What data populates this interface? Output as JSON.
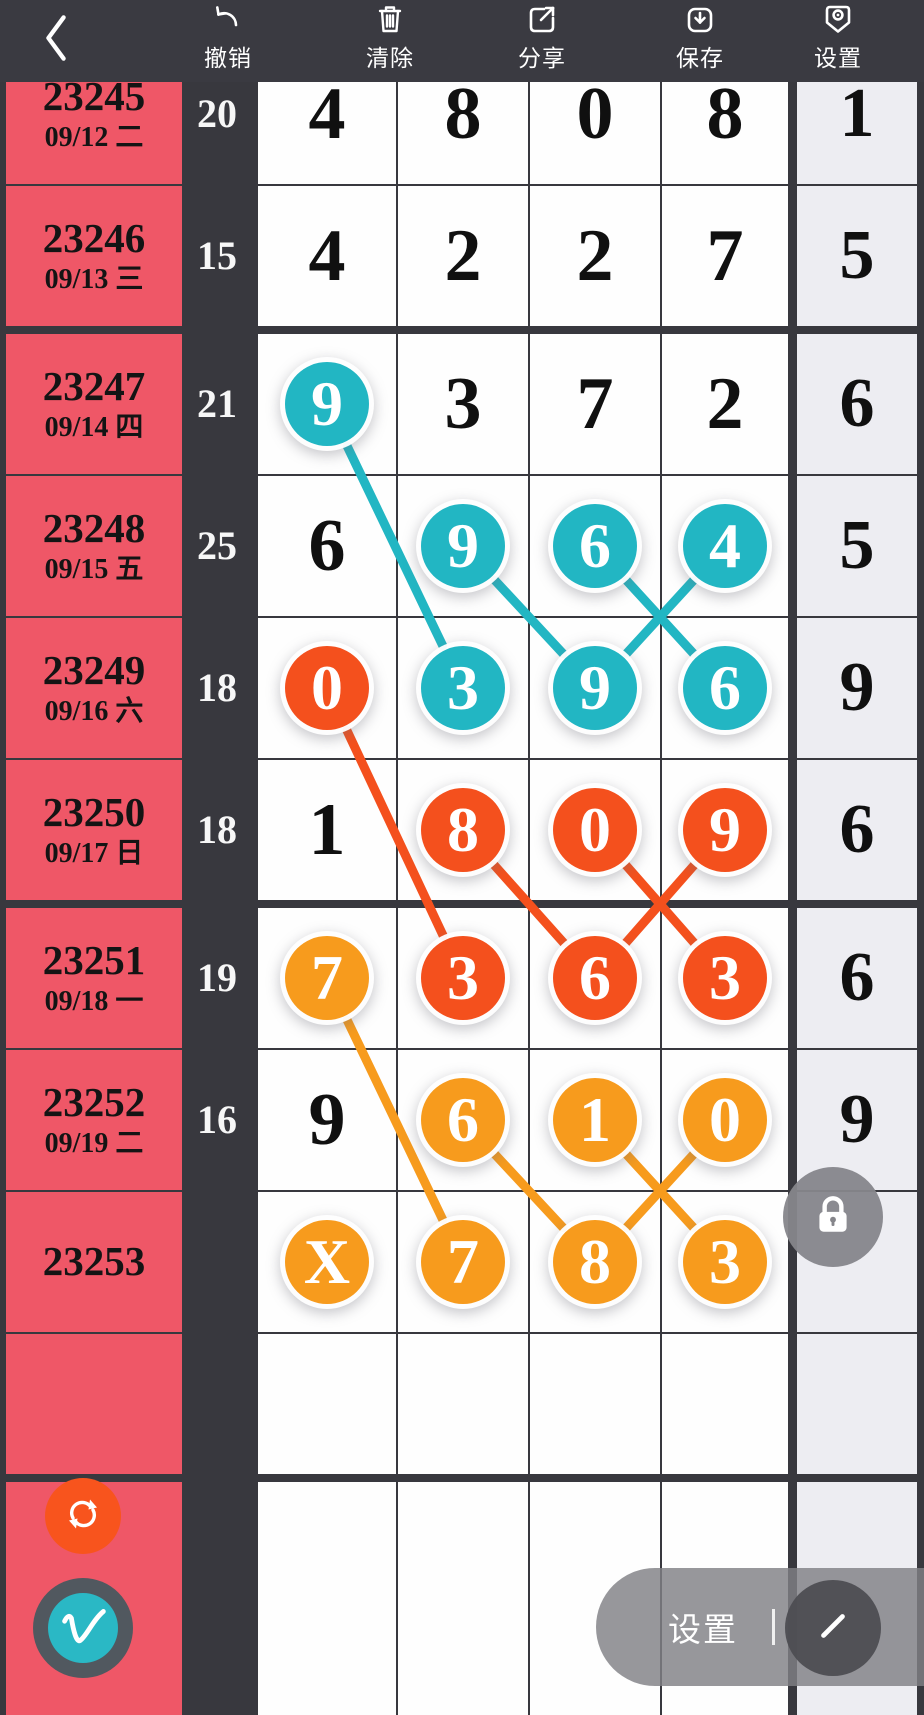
{
  "toolbar": {
    "back_icon": "chevron-left",
    "items": [
      {
        "id": "undo",
        "icon": "undo-icon",
        "label": "撤销"
      },
      {
        "id": "clear",
        "icon": "trash-icon",
        "label": "清除"
      },
      {
        "id": "share",
        "icon": "share-icon",
        "label": "分享"
      },
      {
        "id": "save",
        "icon": "save-icon",
        "label": "保存"
      },
      {
        "id": "settings",
        "icon": "settings-badge-icon",
        "label": "设置"
      }
    ]
  },
  "board": {
    "issues": [
      {
        "no": "23245",
        "date": "09/12 二"
      },
      {
        "no": "23246",
        "date": "09/13 三"
      },
      {
        "no": "23247",
        "date": "09/14 四"
      },
      {
        "no": "23248",
        "date": "09/15 五"
      },
      {
        "no": "23249",
        "date": "09/16 六"
      },
      {
        "no": "23250",
        "date": "09/17 日"
      },
      {
        "no": "23251",
        "date": "09/18 一"
      },
      {
        "no": "23252",
        "date": "09/19 二"
      },
      {
        "no": "23253",
        "date": ""
      },
      {
        "no": "",
        "date": ""
      },
      {
        "no": "",
        "date": ""
      },
      {
        "no": "",
        "date": ""
      }
    ],
    "counts": [
      "20",
      "15",
      "21",
      "25",
      "18",
      "18",
      "19",
      "16",
      "",
      "",
      "",
      ""
    ],
    "cells": [
      [
        {
          "v": "4",
          "s": "plain"
        },
        {
          "v": "8",
          "s": "plain"
        },
        {
          "v": "0",
          "s": "plain"
        },
        {
          "v": "8",
          "s": "plain"
        }
      ],
      [
        {
          "v": "4",
          "s": "plain"
        },
        {
          "v": "2",
          "s": "plain"
        },
        {
          "v": "2",
          "s": "plain"
        },
        {
          "v": "7",
          "s": "plain"
        }
      ],
      [
        {
          "v": "9",
          "s": "teal"
        },
        {
          "v": "3",
          "s": "plain"
        },
        {
          "v": "7",
          "s": "plain"
        },
        {
          "v": "2",
          "s": "plain"
        }
      ],
      [
        {
          "v": "6",
          "s": "plain"
        },
        {
          "v": "9",
          "s": "teal"
        },
        {
          "v": "6",
          "s": "teal"
        },
        {
          "v": "4",
          "s": "teal"
        }
      ],
      [
        {
          "v": "0",
          "s": "orangered"
        },
        {
          "v": "3",
          "s": "teal"
        },
        {
          "v": "9",
          "s": "teal"
        },
        {
          "v": "6",
          "s": "teal"
        }
      ],
      [
        {
          "v": "1",
          "s": "plain"
        },
        {
          "v": "8",
          "s": "orangered"
        },
        {
          "v": "0",
          "s": "orangered"
        },
        {
          "v": "9",
          "s": "orangered"
        }
      ],
      [
        {
          "v": "7",
          "s": "orange"
        },
        {
          "v": "3",
          "s": "orangered"
        },
        {
          "v": "6",
          "s": "orangered"
        },
        {
          "v": "3",
          "s": "orangered"
        }
      ],
      [
        {
          "v": "9",
          "s": "plain"
        },
        {
          "v": "6",
          "s": "orange"
        },
        {
          "v": "1",
          "s": "orange"
        },
        {
          "v": "0",
          "s": "orange"
        }
      ],
      [
        {
          "v": "X",
          "s": "orange"
        },
        {
          "v": "7",
          "s": "orange"
        },
        {
          "v": "8",
          "s": "orange"
        },
        {
          "v": "3",
          "s": "orange"
        }
      ],
      [
        {
          "v": "",
          "s": "plain"
        },
        {
          "v": "",
          "s": "plain"
        },
        {
          "v": "",
          "s": "plain"
        },
        {
          "v": "",
          "s": "plain"
        }
      ],
      [
        {
          "v": "",
          "s": "plain"
        },
        {
          "v": "",
          "s": "plain"
        },
        {
          "v": "",
          "s": "plain"
        },
        {
          "v": "",
          "s": "plain"
        }
      ],
      [
        {
          "v": "",
          "s": "plain"
        },
        {
          "v": "",
          "s": "plain"
        },
        {
          "v": "",
          "s": "plain"
        },
        {
          "v": "",
          "s": "plain"
        }
      ]
    ],
    "right": [
      "1",
      "5",
      "6",
      "5",
      "9",
      "6",
      "6",
      "9",
      "",
      "",
      "",
      ""
    ],
    "connections": [
      {
        "s": "teal",
        "f": [
          3,
          1
        ],
        "t": [
          5,
          2
        ]
      },
      {
        "s": "teal",
        "f": [
          4,
          2
        ],
        "t": [
          5,
          3
        ]
      },
      {
        "s": "teal",
        "f": [
          4,
          3
        ],
        "t": [
          5,
          4
        ]
      },
      {
        "s": "teal",
        "f": [
          4,
          4
        ],
        "t": [
          5,
          3
        ]
      },
      {
        "s": "orangered",
        "f": [
          5,
          1
        ],
        "t": [
          7,
          2
        ]
      },
      {
        "s": "orangered",
        "f": [
          6,
          2
        ],
        "t": [
          7,
          3
        ]
      },
      {
        "s": "orangered",
        "f": [
          6,
          3
        ],
        "t": [
          7,
          4
        ]
      },
      {
        "s": "orangered",
        "f": [
          6,
          4
        ],
        "t": [
          7,
          3
        ]
      },
      {
        "s": "orange",
        "f": [
          7,
          1
        ],
        "t": [
          9,
          2
        ]
      },
      {
        "s": "orange",
        "f": [
          8,
          2
        ],
        "t": [
          9,
          3
        ]
      },
      {
        "s": "orange",
        "f": [
          8,
          3
        ],
        "t": [
          9,
          4
        ]
      },
      {
        "s": "orange",
        "f": [
          8,
          4
        ],
        "t": [
          9,
          3
        ]
      }
    ]
  },
  "overlays": {
    "settings_label": "设置",
    "divider": "|",
    "lock_icon": "padlock",
    "refresh_icon": "sync-arrows",
    "draw_icon": "signature-v",
    "pencil_icon": "diagonal-stroke"
  },
  "colors": {
    "background": "#38383e",
    "toolbar": "#3a3a41",
    "issue_red": "#ef5767",
    "teal": "#22b6c3",
    "orangered": "#f4501d",
    "orange": "#f79b1d",
    "cell_white": "#fefefe",
    "right_column": "#ededf2",
    "lock_gray": "#86868b",
    "refresh_orange": "#f8541d"
  }
}
